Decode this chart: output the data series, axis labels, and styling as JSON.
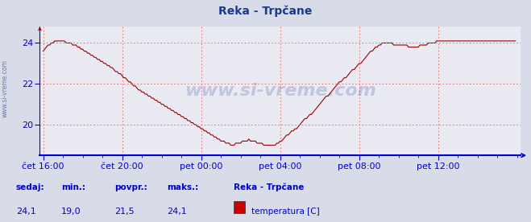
{
  "title": "Reka - Trpčane",
  "title_color": "#1a3a8c",
  "bg_color": "#d8dce8",
  "plot_bg_color": "#eaeaf2",
  "grid_color": "#e06060",
  "axis_color": "#0000cc",
  "line_color": "#990000",
  "watermark": "www.si-vreme.com",
  "watermark_color": "#1a3a8c",
  "ylabel_text": "www.si-vreme.com",
  "x_tick_labels": [
    "čet 16:00",
    "čet 20:00",
    "pet 00:00",
    "pet 04:00",
    "pet 08:00",
    "pet 12:00"
  ],
  "x_tick_positions": [
    0,
    48,
    96,
    144,
    192,
    240
  ],
  "ylim": [
    18.5,
    24.8
  ],
  "yticks": [
    20,
    22,
    24
  ],
  "xlim": [
    -2,
    290
  ],
  "footer_labels": [
    "sedaj:",
    "min.:",
    "povpr.:",
    "maks.:"
  ],
  "footer_values": [
    "24,1",
    "19,0",
    "21,5",
    "24,1"
  ],
  "legend_label": "temperatura [C]",
  "legend_station": "Reka - Trpčane",
  "legend_color": "#cc0000",
  "temperature_data": [
    23.6,
    23.7,
    23.8,
    23.9,
    23.9,
    24.0,
    24.0,
    24.1,
    24.1,
    24.1,
    24.1,
    24.1,
    24.1,
    24.1,
    24.0,
    24.0,
    24.0,
    24.0,
    23.9,
    23.9,
    23.9,
    23.8,
    23.8,
    23.7,
    23.7,
    23.6,
    23.6,
    23.5,
    23.5,
    23.4,
    23.4,
    23.3,
    23.3,
    23.2,
    23.2,
    23.1,
    23.1,
    23.0,
    23.0,
    22.9,
    22.9,
    22.8,
    22.8,
    22.7,
    22.6,
    22.6,
    22.5,
    22.5,
    22.4,
    22.3,
    22.3,
    22.2,
    22.1,
    22.1,
    22.0,
    21.9,
    21.9,
    21.8,
    21.7,
    21.7,
    21.6,
    21.6,
    21.5,
    21.5,
    21.4,
    21.4,
    21.3,
    21.3,
    21.2,
    21.2,
    21.1,
    21.1,
    21.0,
    21.0,
    20.9,
    20.9,
    20.8,
    20.8,
    20.7,
    20.7,
    20.6,
    20.6,
    20.5,
    20.5,
    20.4,
    20.4,
    20.3,
    20.3,
    20.2,
    20.2,
    20.1,
    20.1,
    20.0,
    20.0,
    19.9,
    19.9,
    19.8,
    19.8,
    19.7,
    19.7,
    19.6,
    19.6,
    19.5,
    19.5,
    19.4,
    19.4,
    19.3,
    19.3,
    19.2,
    19.2,
    19.2,
    19.1,
    19.1,
    19.1,
    19.0,
    19.0,
    19.0,
    19.1,
    19.1,
    19.1,
    19.1,
    19.2,
    19.2,
    19.2,
    19.2,
    19.3,
    19.2,
    19.2,
    19.2,
    19.2,
    19.1,
    19.1,
    19.1,
    19.1,
    19.0,
    19.0,
    19.0,
    19.0,
    19.0,
    19.0,
    19.0,
    19.0,
    19.1,
    19.1,
    19.2,
    19.2,
    19.3,
    19.4,
    19.5,
    19.5,
    19.6,
    19.7,
    19.7,
    19.8,
    19.8,
    19.9,
    20.0,
    20.1,
    20.2,
    20.3,
    20.3,
    20.4,
    20.5,
    20.5,
    20.6,
    20.7,
    20.8,
    20.9,
    21.0,
    21.1,
    21.2,
    21.3,
    21.4,
    21.4,
    21.5,
    21.6,
    21.7,
    21.8,
    21.9,
    22.0,
    22.1,
    22.1,
    22.2,
    22.3,
    22.3,
    22.4,
    22.5,
    22.6,
    22.7,
    22.7,
    22.8,
    22.9,
    23.0,
    23.0,
    23.1,
    23.2,
    23.3,
    23.4,
    23.5,
    23.6,
    23.6,
    23.7,
    23.8,
    23.8,
    23.9,
    23.9,
    24.0,
    24.0,
    24.0,
    24.0,
    24.0,
    24.0,
    24.0,
    23.9,
    23.9,
    23.9,
    23.9,
    23.9,
    23.9,
    23.9,
    23.9,
    23.9,
    23.8,
    23.8,
    23.8,
    23.8,
    23.8,
    23.8,
    23.8,
    23.9,
    23.9,
    23.9,
    23.9,
    23.9,
    24.0,
    24.0,
    24.0,
    24.0,
    24.0,
    24.1,
    24.1,
    24.1,
    24.1,
    24.1,
    24.1,
    24.1,
    24.1,
    24.1,
    24.1,
    24.1,
    24.1,
    24.1,
    24.1,
    24.1,
    24.1,
    24.1,
    24.1,
    24.1,
    24.1,
    24.1,
    24.1,
    24.1,
    24.1,
    24.1,
    24.1,
    24.1,
    24.1,
    24.1,
    24.1,
    24.1,
    24.1,
    24.1,
    24.1,
    24.1,
    24.1,
    24.1,
    24.1,
    24.1,
    24.1,
    24.1,
    24.1,
    24.1,
    24.1,
    24.1,
    24.1,
    24.1,
    24.1,
    24.1
  ]
}
